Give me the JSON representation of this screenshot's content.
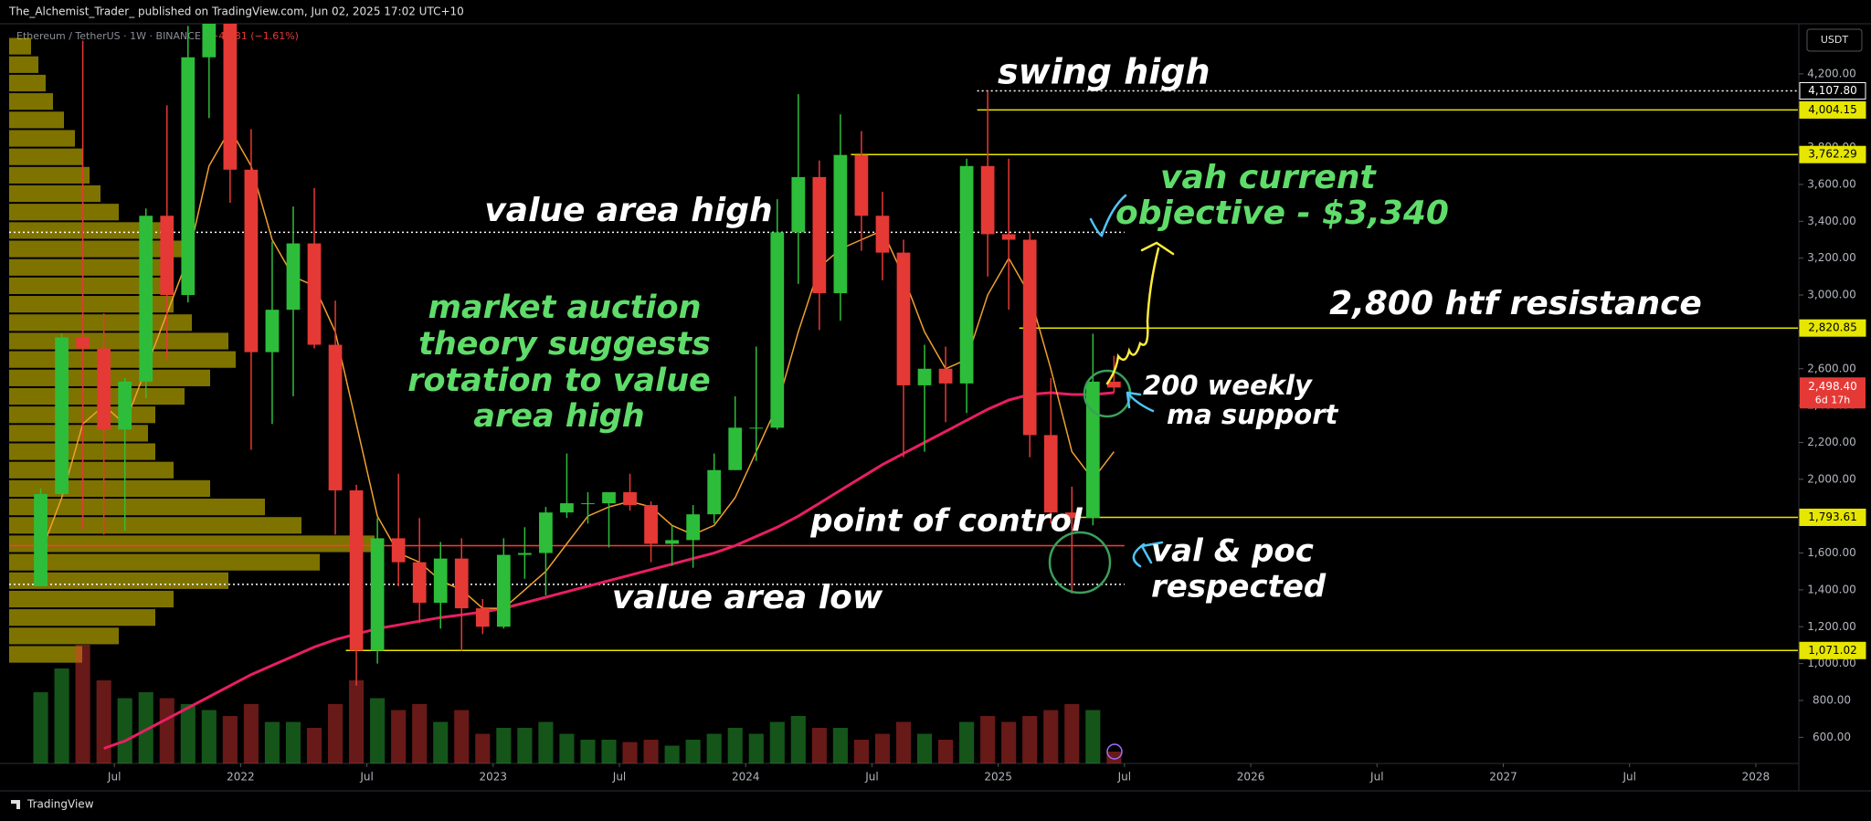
{
  "publisher": "The_Alchemist_Trader_ published on TradingView.com, Jun 02, 2025 17:02 UTC+10",
  "footer": "TradingView",
  "chart_data": {
    "type": "candlestick",
    "symbol": "Ethereum / TetherUS · 1W · BINANCE",
    "change": "−40.81 (−1.61%)",
    "currency": "USDT",
    "x": [
      "2021-03",
      "2021-04",
      "2021-05",
      "2021-06",
      "2021-07",
      "2021-08",
      "2021-09",
      "2021-10",
      "2021-11",
      "2021-12",
      "2022-01",
      "2022-02",
      "2022-03",
      "2022-04",
      "2022-05",
      "2022-06",
      "2022-07",
      "2022-08",
      "2022-09",
      "2022-10",
      "2022-11",
      "2022-12",
      "2023-01",
      "2023-02",
      "2023-03",
      "2023-04",
      "2023-05",
      "2023-06",
      "2023-07",
      "2023-08",
      "2023-09",
      "2023-10",
      "2023-11",
      "2023-12",
      "2024-01",
      "2024-02",
      "2024-03",
      "2024-04",
      "2024-05",
      "2024-06",
      "2024-07",
      "2024-08",
      "2024-09",
      "2024-10",
      "2024-11",
      "2024-12",
      "2025-01",
      "2025-02",
      "2025-03",
      "2025-04",
      "2025-05",
      "2025-06"
    ],
    "open": [
      1420,
      1920,
      2770,
      2710,
      2270,
      2530,
      3430,
      3000,
      4290,
      4630,
      3680,
      2690,
      2920,
      3280,
      2730,
      1940,
      1070,
      1680,
      1550,
      1330,
      1570,
      1300,
      1200,
      1590,
      1600,
      1820,
      1870,
      1870,
      1930,
      1860,
      1650,
      1670,
      1810,
      2050,
      2280,
      2280,
      3340,
      3640,
      3010,
      3760,
      3430,
      3230,
      2510,
      2600,
      2520,
      3700,
      3330,
      3300,
      2240,
      1820,
      1790,
      2530
    ],
    "high": [
      1950,
      2790,
      4380,
      2900,
      2550,
      3470,
      4030,
      4460,
      4870,
      4780,
      3900,
      3290,
      3480,
      3580,
      2970,
      1970,
      1790,
      2030,
      1790,
      1660,
      1680,
      1350,
      1680,
      1740,
      1850,
      2140,
      1930,
      1930,
      2030,
      1880,
      1750,
      1860,
      2140,
      2450,
      2720,
      3520,
      4090,
      3730,
      3980,
      3890,
      3560,
      3300,
      2730,
      2720,
      3740,
      4107,
      3740,
      3340,
      2550,
      1960,
      2790,
      2670
    ],
    "low": [
      1430,
      1910,
      1730,
      1700,
      1720,
      2440,
      2650,
      2960,
      3960,
      3500,
      2160,
      2300,
      2450,
      2710,
      1700,
      880,
      1000,
      1420,
      1220,
      1190,
      1070,
      1160,
      1190,
      1460,
      1370,
      1790,
      1760,
      1630,
      1830,
      1550,
      1530,
      1520,
      1760,
      2050,
      2100,
      2270,
      3060,
      2810,
      2860,
      3240,
      3080,
      2120,
      2150,
      2310,
      2360,
      3100,
      2920,
      2120,
      1760,
      1380,
      1750,
      2470
    ],
    "close": [
      1920,
      2770,
      2710,
      2270,
      2530,
      3430,
      3000,
      4290,
      4630,
      3680,
      2690,
      2920,
      3280,
      2730,
      1940,
      1070,
      1680,
      1550,
      1330,
      1570,
      1300,
      1200,
      1590,
      1600,
      1820,
      1870,
      1870,
      1930,
      1860,
      1650,
      1670,
      1810,
      2050,
      2280,
      2280,
      3340,
      3640,
      3010,
      3760,
      3430,
      3230,
      2510,
      2600,
      2520,
      3700,
      3330,
      3300,
      2240,
      1820,
      1790,
      2530,
      2498
    ],
    "volume": [
      60,
      80,
      100,
      70,
      55,
      60,
      55,
      50,
      45,
      40,
      50,
      35,
      35,
      30,
      50,
      70,
      55,
      45,
      50,
      35,
      45,
      25,
      30,
      30,
      35,
      25,
      20,
      20,
      18,
      20,
      15,
      20,
      25,
      30,
      25,
      35,
      40,
      30,
      30,
      20,
      25,
      35,
      25,
      20,
      35,
      40,
      35,
      40,
      45,
      50,
      45,
      10
    ],
    "up_color": "#2ebd3a",
    "down_color": "#e53935",
    "series": [
      {
        "color": "#e91e63",
        "values": [
          null,
          null,
          null,
          540,
          580,
          640,
          700,
          760,
          820,
          880,
          940,
          990,
          1040,
          1090,
          1130,
          1160,
          1190,
          1210,
          1230,
          1250,
          1265,
          1280,
          1300,
          1330,
          1360,
          1390,
          1420,
          1450,
          1480,
          1510,
          1540,
          1570,
          1600,
          1640,
          1690,
          1740,
          1800,
          1870,
          1940,
          2010,
          2080,
          2140,
          2200,
          2260,
          2320,
          2380,
          2430,
          2460,
          2470,
          2460,
          2460,
          2470
        ]
      },
      {
        "color": "#f0a030",
        "values": [
          1600,
          1900,
          2300,
          2400,
          2300,
          2600,
          2900,
          3200,
          3700,
          3900,
          3700,
          3300,
          3100,
          3050,
          2800,
          2300,
          1800,
          1600,
          1550,
          1450,
          1400,
          1300,
          1300,
          1400,
          1500,
          1650,
          1800,
          1850,
          1880,
          1850,
          1750,
          1700,
          1750,
          1900,
          2150,
          2400,
          2800,
          3150,
          3250,
          3300,
          3350,
          3100,
          2800,
          2600,
          2650,
          3000,
          3200,
          3000,
          2600,
          2150,
          2000,
          2150
        ]
      }
    ],
    "profile": {
      "color": "#d4c000",
      "bins": [
        1000,
        1100,
        1200,
        1300,
        1400,
        1500,
        1600,
        1700,
        1800,
        1900,
        2000,
        2100,
        2200,
        2300,
        2400,
        2500,
        2600,
        2700,
        2800,
        2900,
        3000,
        3100,
        3200,
        3300,
        3400,
        3500,
        3600,
        3700,
        3800,
        3900,
        4000,
        4100,
        4200,
        4300,
        4400
      ],
      "values": [
        20,
        30,
        40,
        45,
        60,
        85,
        100,
        80,
        70,
        55,
        45,
        40,
        38,
        40,
        48,
        55,
        62,
        60,
        50,
        45,
        42,
        45,
        48,
        45,
        30,
        25,
        22,
        20,
        18,
        15,
        12,
        10,
        8,
        6
      ]
    },
    "levels": [
      {
        "value": 4107.8,
        "label": "4,107.80",
        "from": "2024-12",
        "color": "#ffffff",
        "style": "dotted"
      },
      {
        "value": 4004.15,
        "label": "4,004.15",
        "from": "2024-12",
        "color": "#e6e600",
        "style": "solid"
      },
      {
        "value": 3762.29,
        "label": "3,762.29",
        "from": "2024-06",
        "color": "#e6e600",
        "style": "solid"
      },
      {
        "value": 2820.85,
        "label": "2,820.85",
        "from": "2025-02",
        "color": "#e6e600",
        "style": "solid"
      },
      {
        "value": 1793.61,
        "label": "1,793.61",
        "from": "2025-04",
        "color": "#e6e600",
        "style": "solid"
      },
      {
        "value": 1071.02,
        "label": "1,071.02",
        "from": "2022-06",
        "color": "#e6e600",
        "style": "solid"
      },
      {
        "value": 3340,
        "from": "2021-02",
        "to": "2025-07",
        "color": "#ffffff",
        "style": "dotted"
      },
      {
        "value": 1640,
        "from": "2021-02",
        "to": "2025-07",
        "color": "#ff3b30",
        "style": "solid"
      },
      {
        "value": 1430,
        "from": "2021-02",
        "to": "2025-07",
        "color": "#ffffff",
        "style": "dotted"
      }
    ],
    "last": {
      "value": 2498.4,
      "label": "2,498.40",
      "countdown": "6d 17h",
      "color": "#e53935"
    },
    "ylim": [
      458,
      4472
    ],
    "yticks": [
      {
        "value": 600,
        "label": "600.00"
      },
      {
        "value": 800,
        "label": "800.00"
      },
      {
        "value": 1000,
        "label": "1,000.00"
      },
      {
        "value": 1200,
        "label": "1,200.00"
      },
      {
        "value": 1400,
        "label": "1,400.00"
      },
      {
        "value": 1600,
        "label": "1,600.00"
      },
      {
        "value": 1800,
        "label": "1,800.00"
      },
      {
        "value": 2000,
        "label": "2,000.00"
      },
      {
        "value": 2200,
        "label": "2,200.00"
      },
      {
        "value": 2400,
        "label": "2,400.00"
      },
      {
        "value": 2600,
        "label": "2,600.00"
      },
      {
        "value": 2800,
        "label": "2,800.00"
      },
      {
        "value": 3000,
        "label": "3,000.00"
      },
      {
        "value": 3200,
        "label": "3,200.00"
      },
      {
        "value": 3400,
        "label": "3,400.00"
      },
      {
        "value": 3600,
        "label": "3,600.00"
      },
      {
        "value": 3800,
        "label": "3,800.00"
      },
      {
        "value": 4000,
        "label": "4,000.00"
      },
      {
        "value": 4200,
        "label": "4,200.00"
      }
    ],
    "xlim": [
      "2021-02",
      "2028-03"
    ],
    "xticks": [
      {
        "value": "2021-07",
        "label": "Jul"
      },
      {
        "value": "2022-01",
        "label": "2022"
      },
      {
        "value": "2022-07",
        "label": "Jul"
      },
      {
        "value": "2023-01",
        "label": "2023"
      },
      {
        "value": "2023-07",
        "label": "Jul"
      },
      {
        "value": "2024-01",
        "label": "2024"
      },
      {
        "value": "2024-07",
        "label": "Jul"
      },
      {
        "value": "2025-01",
        "label": "2025"
      },
      {
        "value": "2025-07",
        "label": "Jul"
      },
      {
        "value": "2026-01",
        "label": "2026"
      },
      {
        "value": "2026-07",
        "label": "Jul"
      },
      {
        "value": "2027-01",
        "label": "2027"
      },
      {
        "value": "2027-07",
        "label": "Jul"
      },
      {
        "value": "2028-01",
        "label": "2028"
      }
    ],
    "annotations": {
      "swing_high": "swing high",
      "value_area_high": "value area high",
      "vah_objective": [
        "vah current",
        "objective - $3,340"
      ],
      "auction": [
        "market auction",
        "theory suggests",
        "rotation to value",
        "area high"
      ],
      "resistance": "2,800 htf resistance",
      "ma_support": [
        "200 weekly",
        "ma support"
      ],
      "poc": "point of control",
      "val_poc": [
        "val & poc",
        "respected"
      ],
      "value_area_low": "value area low"
    }
  }
}
